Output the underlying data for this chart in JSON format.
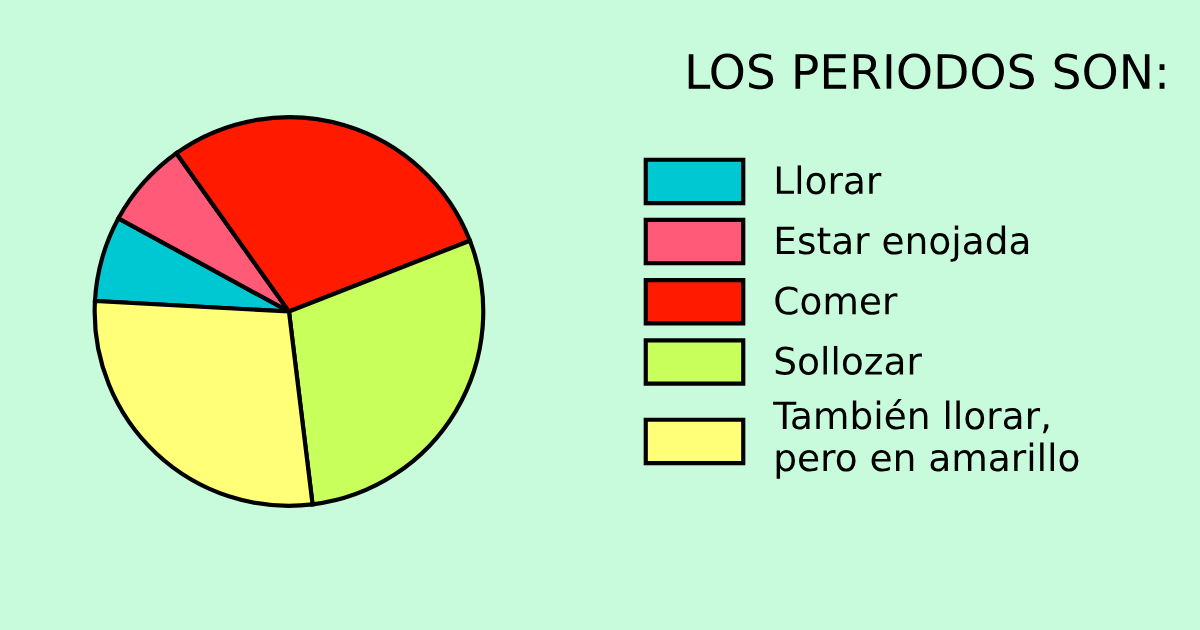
{
  "chart_data": {
    "type": "pie",
    "title": "LOS PERIODOS SON:",
    "categories": [
      "Llorar",
      "Estar enojada",
      "Comer",
      "Sollozar",
      "También llorar,\npero en amarillo"
    ],
    "values": [
      7.1,
      7.2,
      28.9,
      29.0,
      27.8
    ],
    "colors": [
      "#00c8d2",
      "#ff5a78",
      "#ff1a00",
      "#c8ff5a",
      "#ffff78"
    ],
    "legend": "right"
  }
}
